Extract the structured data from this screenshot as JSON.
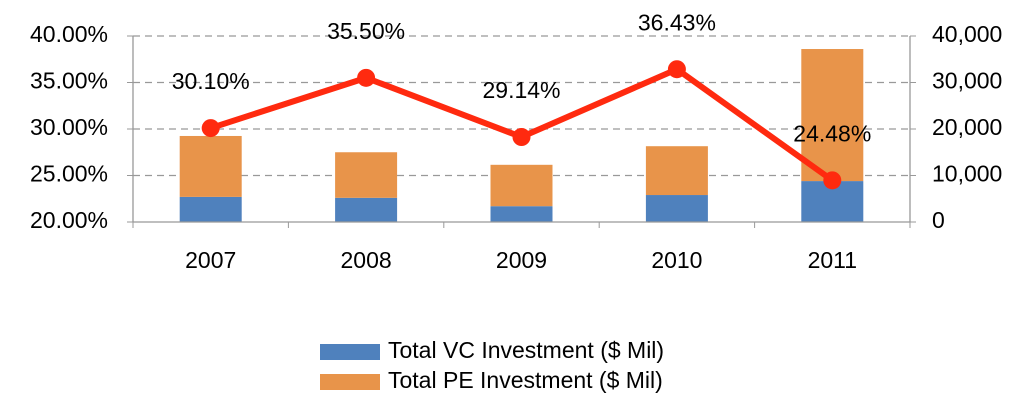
{
  "chart_data": {
    "type": "bar",
    "categories": [
      "2007",
      "2008",
      "2009",
      "2010",
      "2011"
    ],
    "series": [
      {
        "name": "Total VC Investment ($ Mil)",
        "color": "#4f81bd",
        "type": "bar",
        "axis": "y2",
        "values": [
          5400,
          5200,
          3400,
          5800,
          8800
        ]
      },
      {
        "name": "Total PE Investment ($ Mil)",
        "color": "#e8944a",
        "type": "bar",
        "axis": "y2",
        "values": [
          13100,
          9800,
          8900,
          10500,
          28400
        ]
      },
      {
        "color": "#ff2a0f",
        "type": "line",
        "values": [
          30.1,
          35.5,
          29.14,
          36.43,
          24.48
        ],
        "value_labels": [
          "30.10%",
          "35.50%",
          "29.14%",
          "36.43%",
          "24.48%"
        ]
      }
    ],
    "ylim": [
      20,
      40
    ],
    "yticks": [
      {
        "value": 20,
        "label": "20.00%"
      },
      {
        "value": 25,
        "label": "25.00%"
      },
      {
        "value": 30,
        "label": "30.00%"
      },
      {
        "value": 35,
        "label": "35.00%"
      },
      {
        "value": 40,
        "label": "40.00%"
      }
    ],
    "y2lim": [
      0,
      40000
    ],
    "y2ticks": [
      0,
      {
        "value": 10000,
        "label": "10,000"
      },
      {
        "value": 20000,
        "label": "20,000"
      },
      {
        "value": 30000,
        "label": "30,000"
      },
      {
        "value": 40000,
        "label": "40,000"
      }
    ],
    "grid": true,
    "legend": "bottom"
  }
}
